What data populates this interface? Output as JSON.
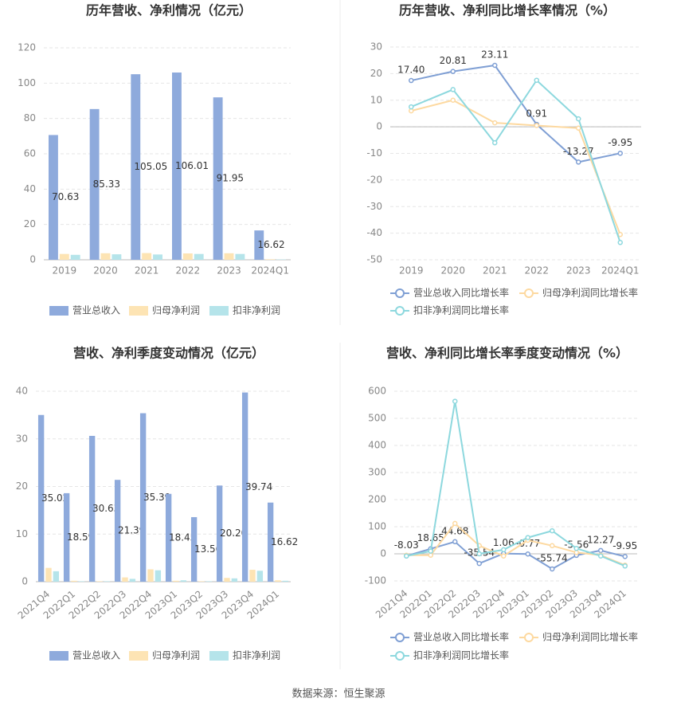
{
  "chart_data": [
    {
      "type": "bar",
      "title": "历年营收、净利情况（亿元）",
      "categories": [
        "2019",
        "2020",
        "2021",
        "2022",
        "2023",
        "2024Q1"
      ],
      "series": [
        {
          "name": "营业总收入",
          "color": "#8eaadc",
          "data_labels": true,
          "values": [
            70.63,
            85.33,
            105.05,
            106.01,
            91.95,
            16.62
          ]
        },
        {
          "name": "归母净利润",
          "color": "#fde4b4",
          "values": [
            3.3,
            3.7,
            3.8,
            3.6,
            3.7,
            0.3
          ]
        },
        {
          "name": "扣非净利润",
          "color": "#b5e4ea",
          "values": [
            2.8,
            3.1,
            3.0,
            3.3,
            3.3,
            0.2
          ]
        }
      ],
      "ylim": [
        0,
        120
      ],
      "yticks": [
        0,
        20,
        40,
        60,
        80,
        100,
        120
      ],
      "grid": true
    },
    {
      "type": "line",
      "title": "历年营收、净利同比增长率情况（%）",
      "categories": [
        "2019",
        "2020",
        "2021",
        "2022",
        "2023",
        "2024Q1"
      ],
      "series": [
        {
          "name": "营业总收入同比增长率",
          "color": "#7f9fd4",
          "values": [
            17.4,
            20.81,
            23.11,
            0.91,
            -13.27,
            -9.95
          ],
          "value_labels": [
            "17.40",
            "20.81",
            "23.11",
            "0.91",
            "-13.27",
            "-9.95"
          ]
        },
        {
          "name": "归母净利润同比增长率",
          "color": "#fdd9a0",
          "values": [
            6,
            10,
            1.5,
            0.5,
            -0.5,
            -40.5
          ]
        },
        {
          "name": "扣非净利润同比增长率",
          "color": "#8dd8de",
          "values": [
            7.5,
            14,
            -6,
            17.5,
            3,
            -43.5
          ]
        }
      ],
      "ylim": [
        -50,
        30
      ],
      "yticks": [
        -50,
        -40,
        -30,
        -20,
        -10,
        0,
        10,
        20,
        30
      ],
      "grid": true
    },
    {
      "type": "bar",
      "title": "营收、净利季度变动情况（亿元）",
      "categories": [
        "2021Q4",
        "2022Q1",
        "2022Q2",
        "2022Q3",
        "2022Q4",
        "2023Q1",
        "2023Q2",
        "2023Q3",
        "2023Q4",
        "2024Q1"
      ],
      "series": [
        {
          "name": "营业总收入",
          "color": "#8eaadc",
          "values": [
            35.02,
            18.59,
            30.63,
            21.39,
            35.39,
            18.45,
            13.56,
            20.2,
            39.74,
            16.62
          ],
          "value_labels": [
            "35.02",
            "18.59",
            "30.63",
            "21.39",
            "35.39",
            "18.45",
            "13.56",
            "20.20",
            "39.74",
            "16.62"
          ]
        },
        {
          "name": "归母净利润",
          "color": "#fde4b4",
          "values": [
            2.9,
            0.2,
            0.1,
            0.9,
            2.6,
            0.2,
            0.1,
            0.8,
            2.5,
            0.3
          ]
        },
        {
          "name": "扣非净利润",
          "color": "#b5e4ea",
          "values": [
            2.2,
            0.1,
            0.1,
            0.6,
            2.4,
            0.3,
            0.1,
            0.7,
            2.3,
            0.2
          ]
        }
      ],
      "ylim": [
        0,
        40
      ],
      "yticks": [
        0,
        10,
        20,
        30,
        40
      ],
      "grid": true
    },
    {
      "type": "line",
      "title": "营收、净利同比增长率季度变动情况（%）",
      "categories": [
        "2021Q4",
        "2022Q1",
        "2022Q2",
        "2022Q3",
        "2022Q4",
        "2023Q1",
        "2023Q2",
        "2023Q3",
        "2023Q4",
        "2024Q1"
      ],
      "series": [
        {
          "name": "营业总收入同比增长率",
          "color": "#7f9fd4",
          "data_labels": true,
          "values": [
            -8.03,
            18.65,
            44.68,
            -35.54,
            1.06,
            -0.77,
            -55.74,
            -5.56,
            12.27,
            -9.95
          ]
        },
        {
          "name": "归母净利润同比增长率",
          "color": "#fdd9a0",
          "values": [
            -5,
            -5,
            112,
            30,
            -8,
            50,
            30,
            5,
            -5,
            -42
          ]
        },
        {
          "name": "扣非净利润同比增长率",
          "color": "#8dd8de",
          "values": [
            -8,
            10,
            563,
            0,
            15,
            60,
            85,
            20,
            -8,
            -45
          ]
        }
      ],
      "ylim": [
        -100,
        600
      ],
      "yticks": [
        -100,
        0,
        100,
        200,
        300,
        400,
        500,
        600
      ],
      "grid": true
    }
  ],
  "footer": {
    "source": "数据来源：恒生聚源"
  }
}
